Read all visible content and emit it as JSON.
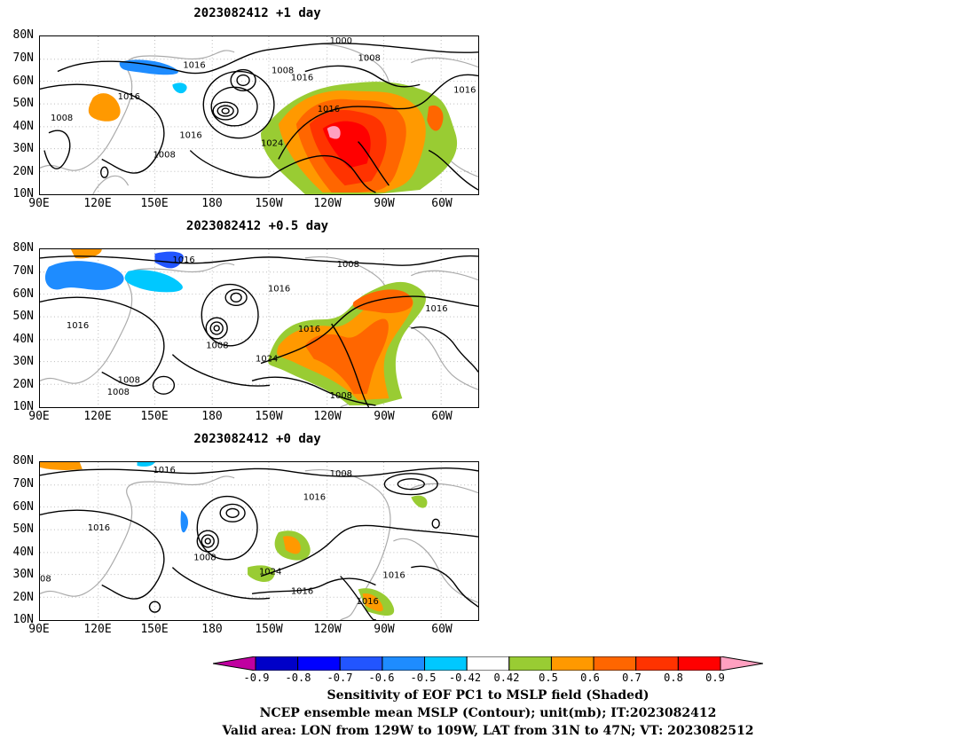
{
  "panels": [
    {
      "title": "2023082412  +1 day",
      "contour_labels": [
        "1000",
        "1008",
        "1008",
        "1016",
        "1016",
        "1016",
        "1016",
        "1008",
        "1016",
        "1016",
        "1024",
        "1008"
      ]
    },
    {
      "title": "2023082412  +0.5 day",
      "contour_labels": [
        "1016",
        "1008",
        "1016",
        "1016",
        "1016",
        "1016",
        "1008",
        "1024",
        "1008",
        "1008",
        "1008"
      ]
    },
    {
      "title": "2023082412  +0 day",
      "contour_labels": [
        "1016",
        "1008",
        "1016",
        "1016",
        "1008",
        "1024",
        "1016",
        "1016",
        "1016",
        "08"
      ]
    }
  ],
  "axes": {
    "lat_labels": [
      "80N",
      "70N",
      "60N",
      "50N",
      "40N",
      "30N",
      "20N",
      "10N"
    ],
    "lon_labels": [
      "90E",
      "120E",
      "150E",
      "180",
      "150W",
      "120W",
      "90W",
      "60W"
    ]
  },
  "colorbar": {
    "ticks": [
      "-0.9",
      "-0.8",
      "-0.7",
      "-0.6",
      "-0.5",
      "-0.42",
      "0.42",
      "0.5",
      "0.6",
      "0.7",
      "0.8",
      "0.9"
    ],
    "colors": [
      "#c000a0",
      "#0000c8",
      "#0000ff",
      "#2255ff",
      "#1e8cff",
      "#00c8ff",
      "#ffffff",
      "#99cc33",
      "#ff9900",
      "#ff6600",
      "#ff3300",
      "#ff0000",
      "#ffa0c0"
    ]
  },
  "footer": {
    "line1": "Sensitivity of EOF PC1 to MSLP field (Shaded)",
    "line2": "NCEP ensemble mean MSLP (Contour); unit(mb); IT:2023082412",
    "line3": "Valid area: LON from 129W to 109W, LAT from 31N to 47N; VT: 2023082512"
  }
}
